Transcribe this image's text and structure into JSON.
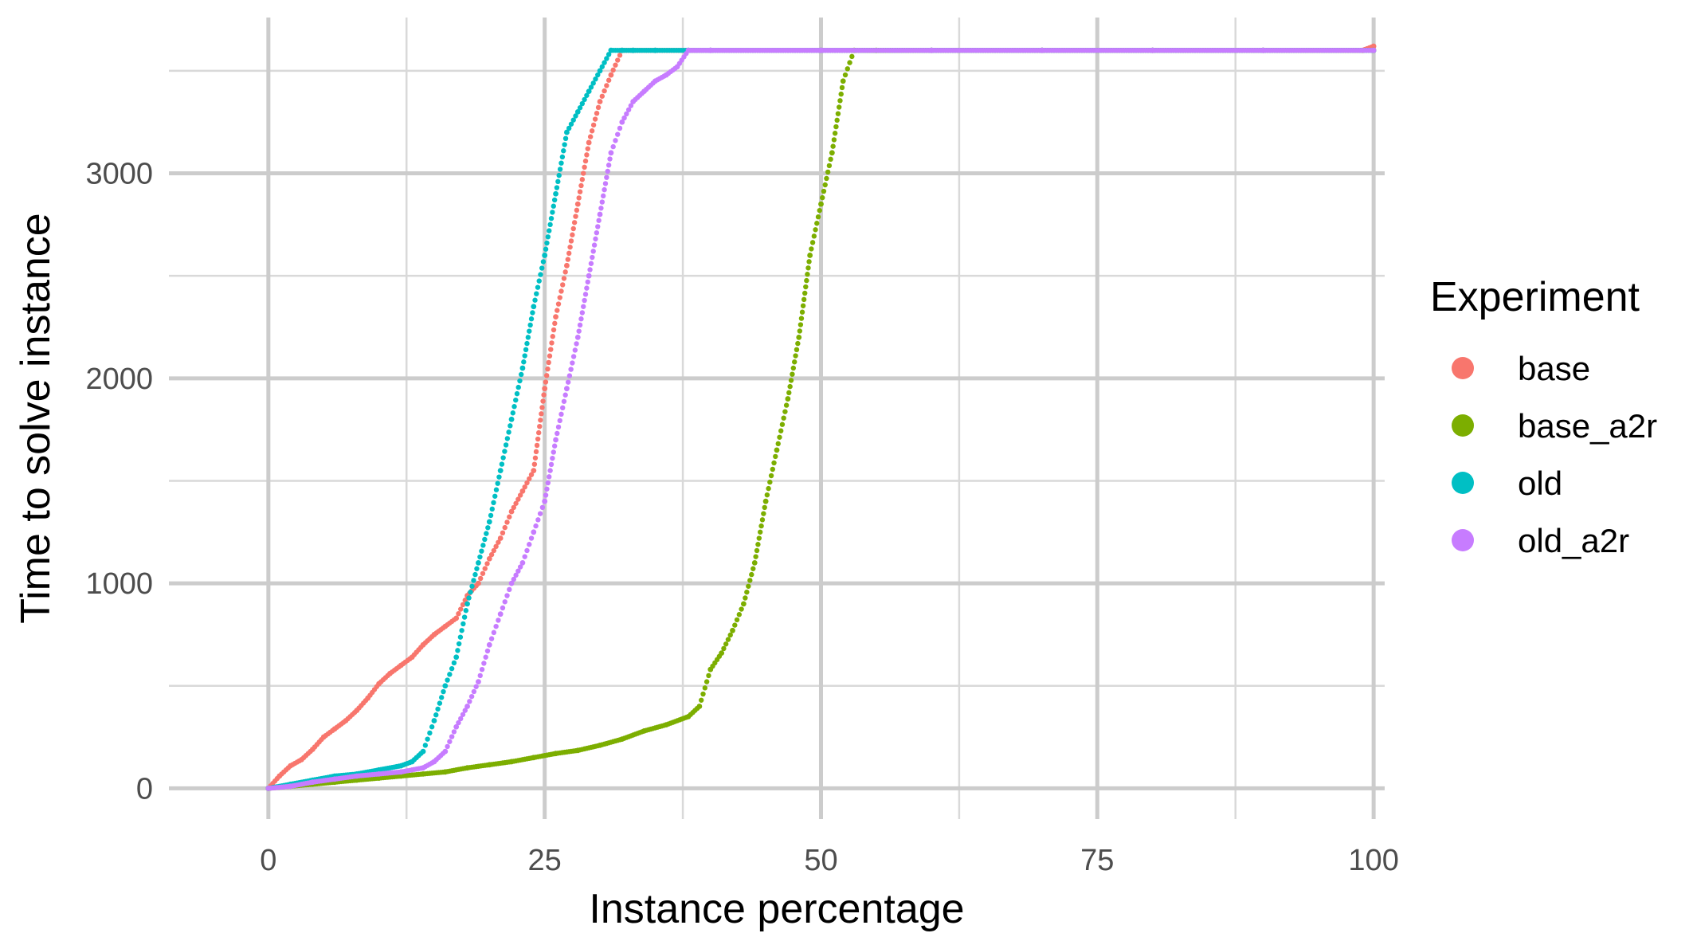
{
  "chart_data": {
    "type": "scatter",
    "title": "",
    "xlabel": "Instance percentage",
    "ylabel": "Time to solve instance",
    "xlim": [
      -9,
      101
    ],
    "ylim": [
      -150,
      3760
    ],
    "x_ticks": [
      0,
      25,
      50,
      75,
      100
    ],
    "y_ticks": [
      0,
      1000,
      2000,
      3000
    ],
    "x_tick_labels": [
      "0",
      "25",
      "50",
      "75",
      "100"
    ],
    "y_tick_labels": [
      "0",
      "1000",
      "2000",
      "3000"
    ],
    "grid": true,
    "legend": {
      "title": "Experiment",
      "position": "right"
    },
    "series": [
      {
        "name": "base",
        "color": "#F8766D",
        "x": [
          0,
          1,
          2,
          3,
          4,
          5,
          6,
          7,
          8,
          9,
          10,
          11,
          12,
          13,
          14,
          15,
          16,
          17,
          18,
          19,
          20,
          21,
          22,
          23,
          24,
          25,
          26,
          27,
          28,
          29,
          30,
          31,
          32,
          33,
          35,
          40,
          50,
          60,
          70,
          80,
          90,
          99,
          100
        ],
        "y": [
          0,
          60,
          110,
          140,
          190,
          250,
          290,
          330,
          380,
          440,
          510,
          560,
          600,
          640,
          700,
          750,
          790,
          830,
          940,
          1000,
          1120,
          1220,
          1350,
          1450,
          1550,
          1950,
          2300,
          2550,
          2850,
          3150,
          3350,
          3480,
          3600,
          3600,
          3600,
          3600,
          3600,
          3600,
          3600,
          3600,
          3600,
          3600,
          3620
        ]
      },
      {
        "name": "base_a2r",
        "color": "#7CAE00",
        "x": [
          0,
          2,
          4,
          6,
          8,
          10,
          12,
          14,
          16,
          18,
          20,
          22,
          24,
          26,
          28,
          30,
          32,
          34,
          36,
          38,
          39,
          40,
          41,
          42,
          43,
          44,
          45,
          46,
          47,
          48,
          49,
          50,
          51,
          52,
          53,
          55,
          60,
          70,
          80,
          90,
          100
        ],
        "y": [
          0,
          10,
          20,
          30,
          40,
          50,
          60,
          70,
          80,
          100,
          115,
          130,
          150,
          170,
          185,
          210,
          240,
          280,
          310,
          350,
          400,
          580,
          660,
          770,
          900,
          1100,
          1400,
          1650,
          1900,
          2200,
          2600,
          2850,
          3100,
          3450,
          3600,
          3600,
          3600,
          3600,
          3600,
          3600,
          3600
        ]
      },
      {
        "name": "old",
        "color": "#00BFC4",
        "x": [
          0,
          2,
          4,
          6,
          8,
          10,
          12,
          13,
          14,
          15,
          16,
          17,
          18,
          19,
          20,
          21,
          22,
          23,
          24,
          25,
          26,
          27,
          28,
          29,
          30,
          31,
          32,
          33,
          35,
          38,
          40,
          50,
          60,
          70,
          80,
          90,
          100
        ],
        "y": [
          0,
          20,
          40,
          60,
          70,
          90,
          110,
          130,
          180,
          330,
          500,
          640,
          900,
          1100,
          1300,
          1550,
          1800,
          2050,
          2350,
          2600,
          2900,
          3200,
          3300,
          3400,
          3500,
          3600,
          3600,
          3600,
          3600,
          3600,
          3600,
          3600,
          3600,
          3600,
          3600,
          3600,
          3600
        ]
      },
      {
        "name": "old_a2r",
        "color": "#C77CFF",
        "x": [
          0,
          2,
          4,
          6,
          8,
          10,
          12,
          14,
          15,
          16,
          17,
          18,
          19,
          20,
          21,
          22,
          23,
          24,
          25,
          26,
          27,
          28,
          29,
          30,
          31,
          32,
          33,
          34,
          35,
          36,
          37,
          38,
          40,
          50,
          60,
          70,
          80,
          90,
          100
        ],
        "y": [
          0,
          10,
          30,
          45,
          60,
          70,
          80,
          100,
          130,
          180,
          300,
          400,
          520,
          700,
          850,
          1000,
          1100,
          1250,
          1400,
          1700,
          1950,
          2200,
          2500,
          2800,
          3100,
          3250,
          3350,
          3400,
          3450,
          3480,
          3520,
          3600,
          3600,
          3600,
          3600,
          3600,
          3600,
          3600,
          3600
        ]
      }
    ]
  }
}
